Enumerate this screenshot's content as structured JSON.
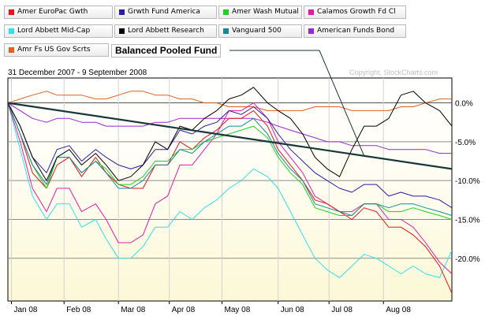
{
  "legend": {
    "items": [
      {
        "label": "Amer EuroPac Gwth",
        "color": "#e8141b"
      },
      {
        "label": "Grwth Fund America",
        "color": "#2c1aa8"
      },
      {
        "label": "Amer Wash Mutual",
        "color": "#1fd21f"
      },
      {
        "label": "Calamos Growth Fd Cl",
        "color": "#e41ba8"
      },
      {
        "label": "Lord Abbett Mid-Cap",
        "color": "#2fe0ef"
      },
      {
        "label": "Lord Abbett Research",
        "color": "#000000"
      },
      {
        "label": "Vanguard 500",
        "color": "#128a96"
      },
      {
        "label": "American Funds Bond",
        "color": "#9a28d4"
      },
      {
        "label": "Amr Fs US Gov Scrts",
        "color": "#e0621d"
      }
    ]
  },
  "annotation": {
    "label": "Balanced Pooled Fund",
    "color": "#17383a"
  },
  "header": {
    "date_range": "31 December 2007 - 9 September 2008",
    "copyright": "Copyright, StockCharts.com"
  },
  "chart_data": {
    "type": "line",
    "x_start": "2007-12-31",
    "x_end": "2008-09-09",
    "x_tick_labels": [
      "Jan 08",
      "Feb 08",
      "Mar 08",
      "Apr 08",
      "May 08",
      "Jun 08",
      "Jul 08",
      "Aug 08"
    ],
    "x_tick_dates": [
      "2008-01-02",
      "2008-02-01",
      "2008-03-03",
      "2008-04-01",
      "2008-05-01",
      "2008-06-02",
      "2008-07-01",
      "2008-08-01"
    ],
    "ylim": [
      -25.5,
      3.2
    ],
    "y_ticks": [
      0,
      -5,
      -10,
      -15,
      -20
    ],
    "y_tick_labels": [
      "0.0%",
      "-5.0%",
      "-10.0%",
      "-15.0%",
      "-20.0%"
    ],
    "grid": true,
    "legend_position": "top",
    "series": [
      {
        "name": "Amer EuroPac Gwth",
        "x": [
          "2007-12-31",
          "2008-01-07",
          "2008-01-14",
          "2008-01-22",
          "2008-01-28",
          "2008-02-04",
          "2008-02-11",
          "2008-02-19",
          "2008-02-25",
          "2008-03-03",
          "2008-03-10",
          "2008-03-17",
          "2008-03-24",
          "2008-03-31",
          "2008-04-07",
          "2008-04-14",
          "2008-04-21",
          "2008-04-28",
          "2008-05-05",
          "2008-05-12",
          "2008-05-19",
          "2008-05-27",
          "2008-06-02",
          "2008-06-09",
          "2008-06-16",
          "2008-06-23",
          "2008-06-30",
          "2008-07-07",
          "2008-07-14",
          "2008-07-21",
          "2008-07-28",
          "2008-08-04",
          "2008-08-11",
          "2008-08-18",
          "2008-08-25",
          "2008-09-02",
          "2008-09-09"
        ],
        "values": [
          0,
          -4,
          -9,
          -11,
          -8,
          -7,
          -9.5,
          -7,
          -9,
          -10.5,
          -11,
          -11,
          -8,
          -8,
          -5,
          -6,
          -4.5,
          -3.5,
          -2,
          -2,
          -1,
          -3,
          -6,
          -8,
          -10,
          -12.5,
          -13,
          -14,
          -15,
          -13.5,
          -14,
          -16,
          -16,
          -17,
          -18.5,
          -21,
          -24.5
        ]
      },
      {
        "name": "Grwth Fund America",
        "x": [
          "2007-12-31",
          "2008-01-07",
          "2008-01-14",
          "2008-01-22",
          "2008-01-28",
          "2008-02-04",
          "2008-02-11",
          "2008-02-19",
          "2008-02-25",
          "2008-03-03",
          "2008-03-10",
          "2008-03-17",
          "2008-03-24",
          "2008-03-31",
          "2008-04-07",
          "2008-04-14",
          "2008-04-21",
          "2008-04-28",
          "2008-05-05",
          "2008-05-12",
          "2008-05-19",
          "2008-05-27",
          "2008-06-02",
          "2008-06-09",
          "2008-06-16",
          "2008-06-23",
          "2008-06-30",
          "2008-07-07",
          "2008-07-14",
          "2008-07-21",
          "2008-07-28",
          "2008-08-04",
          "2008-08-11",
          "2008-08-18",
          "2008-08-25",
          "2008-09-02",
          "2008-09-09"
        ],
        "values": [
          0,
          -3,
          -7,
          -9,
          -6,
          -5.5,
          -7.5,
          -6,
          -7,
          -8,
          -8.5,
          -8,
          -6,
          -6,
          -3.5,
          -4,
          -3,
          -2.5,
          -1,
          -1.5,
          -0.5,
          -2,
          -4,
          -6,
          -7.5,
          -9,
          -10,
          -11,
          -11.5,
          -10.5,
          -10.5,
          -12,
          -11.5,
          -12,
          -12,
          -12.5,
          -13.5
        ]
      },
      {
        "name": "Amer Wash Mutual",
        "x": [
          "2007-12-31",
          "2008-01-07",
          "2008-01-14",
          "2008-01-22",
          "2008-01-28",
          "2008-02-04",
          "2008-02-11",
          "2008-02-19",
          "2008-02-25",
          "2008-03-03",
          "2008-03-10",
          "2008-03-17",
          "2008-03-24",
          "2008-03-31",
          "2008-04-07",
          "2008-04-14",
          "2008-04-21",
          "2008-04-28",
          "2008-05-05",
          "2008-05-12",
          "2008-05-19",
          "2008-05-27",
          "2008-06-02",
          "2008-06-09",
          "2008-06-16",
          "2008-06-23",
          "2008-06-30",
          "2008-07-07",
          "2008-07-14",
          "2008-07-21",
          "2008-07-28",
          "2008-08-04",
          "2008-08-11",
          "2008-08-18",
          "2008-08-25",
          "2008-09-02",
          "2008-09-09"
        ],
        "values": [
          0,
          -4,
          -8,
          -11,
          -7,
          -7,
          -9,
          -7.5,
          -8.5,
          -10.5,
          -10.5,
          -9.5,
          -7.5,
          -7.5,
          -6,
          -6,
          -5,
          -4.5,
          -4,
          -3.5,
          -3,
          -4.5,
          -7,
          -9,
          -10.5,
          -13.5,
          -14,
          -14.5,
          -14.5,
          -13,
          -13,
          -14,
          -14,
          -13.5,
          -14,
          -14.5,
          -15
        ]
      },
      {
        "name": "Calamos Growth Fd Cl",
        "x": [
          "2007-12-31",
          "2008-01-07",
          "2008-01-14",
          "2008-01-22",
          "2008-01-28",
          "2008-02-04",
          "2008-02-11",
          "2008-02-19",
          "2008-02-25",
          "2008-03-03",
          "2008-03-10",
          "2008-03-17",
          "2008-03-24",
          "2008-03-31",
          "2008-04-07",
          "2008-04-14",
          "2008-04-21",
          "2008-04-28",
          "2008-05-05",
          "2008-05-12",
          "2008-05-19",
          "2008-05-27",
          "2008-06-02",
          "2008-06-09",
          "2008-06-16",
          "2008-06-23",
          "2008-06-30",
          "2008-07-07",
          "2008-07-14",
          "2008-07-21",
          "2008-07-28",
          "2008-08-04",
          "2008-08-11",
          "2008-08-18",
          "2008-08-25",
          "2008-09-02",
          "2008-09-09"
        ],
        "values": [
          0,
          -5,
          -11,
          -14,
          -11,
          -11,
          -14,
          -13,
          -15,
          -18,
          -18,
          -17,
          -13,
          -12,
          -8,
          -8,
          -6,
          -4,
          -1,
          -1,
          0,
          -2,
          -5,
          -7,
          -9,
          -12,
          -13,
          -14,
          -14,
          -13,
          -13,
          -15,
          -15,
          -16,
          -18,
          -20.5,
          -22
        ]
      },
      {
        "name": "Lord Abbett Mid-Cap",
        "x": [
          "2007-12-31",
          "2008-01-07",
          "2008-01-14",
          "2008-01-22",
          "2008-01-28",
          "2008-02-04",
          "2008-02-11",
          "2008-02-19",
          "2008-02-25",
          "2008-03-03",
          "2008-03-10",
          "2008-03-17",
          "2008-03-24",
          "2008-03-31",
          "2008-04-07",
          "2008-04-14",
          "2008-04-21",
          "2008-04-28",
          "2008-05-05",
          "2008-05-12",
          "2008-05-19",
          "2008-05-27",
          "2008-06-02",
          "2008-06-09",
          "2008-06-16",
          "2008-06-23",
          "2008-06-30",
          "2008-07-07",
          "2008-07-14",
          "2008-07-21",
          "2008-07-28",
          "2008-08-04",
          "2008-08-11",
          "2008-08-18",
          "2008-08-25",
          "2008-09-02",
          "2008-09-09"
        ],
        "values": [
          0,
          -6,
          -12,
          -15,
          -13,
          -13,
          -16,
          -15,
          -17.5,
          -20,
          -20,
          -18.5,
          -16,
          -16,
          -14,
          -15,
          -13.5,
          -12.5,
          -11,
          -10,
          -8.5,
          -9.5,
          -11,
          -14,
          -17,
          -20,
          -21.5,
          -22.5,
          -21,
          -19.5,
          -20,
          -21,
          -22,
          -21,
          -22,
          -22.5,
          -19
        ]
      },
      {
        "name": "Lord Abbett Research",
        "x": [
          "2007-12-31",
          "2008-01-07",
          "2008-01-14",
          "2008-01-22",
          "2008-01-28",
          "2008-02-04",
          "2008-02-11",
          "2008-02-19",
          "2008-02-25",
          "2008-03-03",
          "2008-03-10",
          "2008-03-17",
          "2008-03-24",
          "2008-03-31",
          "2008-04-07",
          "2008-04-14",
          "2008-04-21",
          "2008-04-28",
          "2008-05-05",
          "2008-05-12",
          "2008-05-19",
          "2008-05-27",
          "2008-06-02",
          "2008-06-09",
          "2008-06-16",
          "2008-06-23",
          "2008-06-30",
          "2008-07-07",
          "2008-07-14",
          "2008-07-21",
          "2008-07-28",
          "2008-08-04",
          "2008-08-11",
          "2008-08-18",
          "2008-08-25",
          "2008-09-02",
          "2008-09-09"
        ],
        "values": [
          0,
          -3,
          -7,
          -10,
          -7,
          -6,
          -8,
          -6.5,
          -8,
          -10,
          -9.5,
          -8,
          -5,
          -6,
          -3,
          -3.5,
          -2,
          -1,
          0.5,
          1,
          2,
          0,
          -1,
          -2,
          -4,
          -7,
          -8.5,
          -9.5,
          -6,
          -3,
          -3,
          -2,
          1,
          1.5,
          0,
          -1,
          -3
        ]
      },
      {
        "name": "Vanguard 500",
        "x": [
          "2007-12-31",
          "2008-01-07",
          "2008-01-14",
          "2008-01-22",
          "2008-01-28",
          "2008-02-04",
          "2008-02-11",
          "2008-02-19",
          "2008-02-25",
          "2008-03-03",
          "2008-03-10",
          "2008-03-17",
          "2008-03-24",
          "2008-03-31",
          "2008-04-07",
          "2008-04-14",
          "2008-04-21",
          "2008-04-28",
          "2008-05-05",
          "2008-05-12",
          "2008-05-19",
          "2008-05-27",
          "2008-06-02",
          "2008-06-09",
          "2008-06-16",
          "2008-06-23",
          "2008-06-30",
          "2008-07-07",
          "2008-07-14",
          "2008-07-21",
          "2008-07-28",
          "2008-08-04",
          "2008-08-11",
          "2008-08-18",
          "2008-08-25",
          "2008-09-02",
          "2008-09-09"
        ],
        "values": [
          0,
          -4,
          -8,
          -10.5,
          -7,
          -7,
          -9,
          -7.5,
          -9,
          -11,
          -11,
          -10,
          -8,
          -8,
          -6,
          -6.5,
          -5,
          -4,
          -3,
          -3,
          -2,
          -4,
          -6.5,
          -8.5,
          -10,
          -13,
          -13.5,
          -14,
          -14.5,
          -13,
          -13,
          -13.5,
          -13,
          -13,
          -13.5,
          -14,
          -14.5
        ]
      },
      {
        "name": "American Funds Bond",
        "x": [
          "2007-12-31",
          "2008-01-07",
          "2008-01-14",
          "2008-01-22",
          "2008-01-28",
          "2008-02-04",
          "2008-02-11",
          "2008-02-19",
          "2008-02-25",
          "2008-03-03",
          "2008-03-10",
          "2008-03-17",
          "2008-03-24",
          "2008-03-31",
          "2008-04-07",
          "2008-04-14",
          "2008-04-21",
          "2008-04-28",
          "2008-05-05",
          "2008-05-12",
          "2008-05-19",
          "2008-05-27",
          "2008-06-02",
          "2008-06-09",
          "2008-06-16",
          "2008-06-23",
          "2008-06-30",
          "2008-07-07",
          "2008-07-14",
          "2008-07-21",
          "2008-07-28",
          "2008-08-04",
          "2008-08-11",
          "2008-08-18",
          "2008-08-25",
          "2008-09-02",
          "2008-09-09"
        ],
        "values": [
          0,
          -1,
          -2,
          -2.5,
          -2,
          -2,
          -2.5,
          -2.5,
          -3,
          -3,
          -3,
          -3,
          -2.5,
          -2.5,
          -2,
          -2,
          -2,
          -2,
          -2,
          -2,
          -2,
          -2.5,
          -3,
          -3.5,
          -4,
          -4.5,
          -5,
          -5,
          -5.5,
          -5.5,
          -5.5,
          -6,
          -6,
          -6,
          -6,
          -6.5,
          -6.5
        ]
      },
      {
        "name": "Amr Fs US Gov Scrts",
        "x": [
          "2007-12-31",
          "2008-01-07",
          "2008-01-14",
          "2008-01-22",
          "2008-01-28",
          "2008-02-04",
          "2008-02-11",
          "2008-02-19",
          "2008-02-25",
          "2008-03-03",
          "2008-03-10",
          "2008-03-17",
          "2008-03-24",
          "2008-03-31",
          "2008-04-07",
          "2008-04-14",
          "2008-04-21",
          "2008-04-28",
          "2008-05-05",
          "2008-05-12",
          "2008-05-19",
          "2008-05-27",
          "2008-06-02",
          "2008-06-09",
          "2008-06-16",
          "2008-06-23",
          "2008-06-30",
          "2008-07-07",
          "2008-07-14",
          "2008-07-21",
          "2008-07-28",
          "2008-08-04",
          "2008-08-11",
          "2008-08-18",
          "2008-08-25",
          "2008-09-02",
          "2008-09-09"
        ],
        "values": [
          0,
          0.5,
          1,
          1.5,
          1,
          1,
          1,
          0.5,
          0.5,
          1,
          1.5,
          1.5,
          1,
          1,
          0.5,
          0.5,
          0,
          0,
          -0.5,
          -0.5,
          -0.5,
          -1,
          -1,
          -1,
          -1,
          -0.5,
          -0.5,
          -0.5,
          -1,
          -1,
          -1,
          -1,
          -0.5,
          -0.5,
          0,
          0.5,
          0.5
        ]
      },
      {
        "name": "Balanced Pooled Fund",
        "x": [
          "2007-12-31",
          "2008-09-09"
        ],
        "values": [
          0,
          -8.5
        ]
      }
    ]
  }
}
